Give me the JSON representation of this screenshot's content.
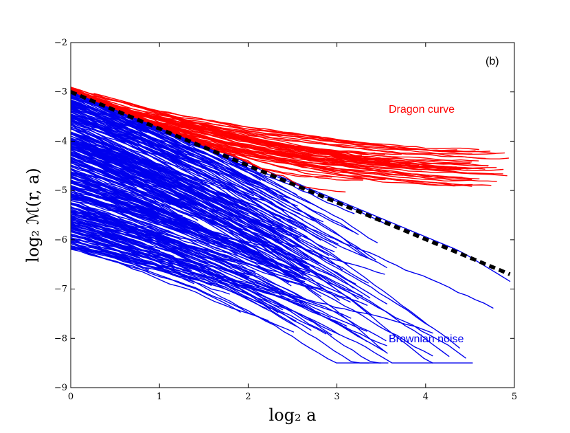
{
  "chart_data": {
    "type": "line",
    "panel_label": "(b)",
    "xlabel": "log₂ a",
    "ylabel": "log₂ ℳ(r, a)",
    "xlim": [
      0,
      5
    ],
    "ylim": [
      -9,
      -2
    ],
    "xticks": [
      0,
      1,
      2,
      3,
      4,
      5
    ],
    "yticks": [
      -9,
      -8,
      -7,
      -6,
      -5,
      -4,
      -3,
      -2
    ],
    "xtick_labels": [
      "0",
      "1",
      "2",
      "3",
      "4",
      "5"
    ],
    "ytick_labels": [
      "−9",
      "−8",
      "−7",
      "−6",
      "−5",
      "−4",
      "−3",
      "−2"
    ],
    "grid": false,
    "colors": {
      "dragon": "#ff0000",
      "brownian": "#0000ee",
      "reference": "#000000"
    },
    "series": [
      {
        "name": "Dragon curve",
        "style": "bundle of solid red lines",
        "count": 60,
        "start_y_range": [
          -3.3,
          -2.9
        ],
        "x_end_range": [
          2.8,
          4.95
        ],
        "end_y_range": [
          -4.9,
          -4.2
        ],
        "example_values": {
          "x": [
            0,
            0.5,
            1,
            1.5,
            2,
            2.5,
            3,
            3.5,
            4,
            4.5,
            4.95
          ],
          "y": [
            -2.9,
            -3.15,
            -3.45,
            -3.75,
            -3.95,
            -4.1,
            -4.2,
            -4.25,
            -4.3,
            -4.35,
            -4.38
          ]
        }
      },
      {
        "name": "Brownian noise",
        "style": "dense bundle of solid blue lines",
        "count": 320,
        "start_y_range": [
          -6.2,
          -2.9
        ],
        "x_end_range": [
          0.6,
          4.95
        ],
        "end_y_range": [
          -8.45,
          -4.5
        ],
        "example_values": {
          "x": [
            0,
            0.5,
            1,
            1.5,
            2,
            2.5,
            3,
            3.5,
            4,
            4.5,
            4.95
          ],
          "y": [
            -3.0,
            -3.35,
            -3.7,
            -4.05,
            -4.45,
            -4.85,
            -5.25,
            -5.65,
            -6.0,
            -6.4,
            -6.9
          ]
        }
      },
      {
        "name": "reference slope",
        "style": "thick black dashed",
        "x": [
          0,
          4.95
        ],
        "y": [
          -3.0,
          -6.7
        ]
      }
    ],
    "annotations": [
      {
        "text": "Dragon curve",
        "color": "#ff0000",
        "position": "upper-right"
      },
      {
        "text": "Brownian noise",
        "color": "#0000ee",
        "position": "lower-right"
      }
    ]
  }
}
